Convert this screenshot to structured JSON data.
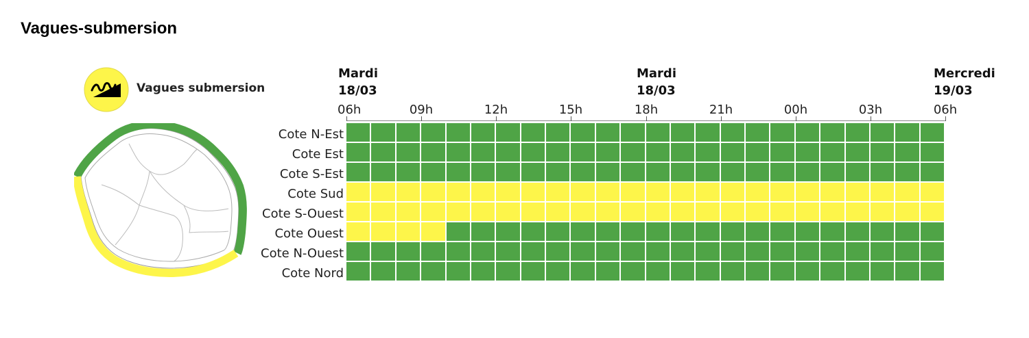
{
  "page": {
    "title": "Vagues-submersion"
  },
  "legend": {
    "label": "Vagues submersion",
    "icon": "wave-submersion-icon"
  },
  "colors": {
    "green": "#4fa446",
    "yellow": "#fdf54a",
    "icon_bg": "#fdf54a"
  },
  "chart_data": {
    "type": "heatmap",
    "title": "",
    "day_labels": [
      {
        "day": "Mardi",
        "date": "18/03"
      },
      {
        "day": "Mardi",
        "date": "18/03"
      },
      {
        "day": "Mercredi",
        "date": "19/03"
      }
    ],
    "x_ticks": [
      "06h",
      "09h",
      "12h",
      "15h",
      "18h",
      "21h",
      "00h",
      "03h",
      "06h"
    ],
    "hours_per_cell": 1,
    "rows": [
      {
        "zone": "Cote N-Est",
        "levels": [
          "green",
          "green",
          "green",
          "green",
          "green",
          "green",
          "green",
          "green",
          "green",
          "green",
          "green",
          "green",
          "green",
          "green",
          "green",
          "green",
          "green",
          "green",
          "green",
          "green",
          "green",
          "green",
          "green",
          "green"
        ]
      },
      {
        "zone": "Cote Est",
        "levels": [
          "green",
          "green",
          "green",
          "green",
          "green",
          "green",
          "green",
          "green",
          "green",
          "green",
          "green",
          "green",
          "green",
          "green",
          "green",
          "green",
          "green",
          "green",
          "green",
          "green",
          "green",
          "green",
          "green",
          "green"
        ]
      },
      {
        "zone": "Cote S-Est",
        "levels": [
          "green",
          "green",
          "green",
          "green",
          "green",
          "green",
          "green",
          "green",
          "green",
          "green",
          "green",
          "green",
          "green",
          "green",
          "green",
          "green",
          "green",
          "green",
          "green",
          "green",
          "green",
          "green",
          "green",
          "green"
        ]
      },
      {
        "zone": "Cote Sud",
        "levels": [
          "yellow",
          "yellow",
          "yellow",
          "yellow",
          "yellow",
          "yellow",
          "yellow",
          "yellow",
          "yellow",
          "yellow",
          "yellow",
          "yellow",
          "yellow",
          "yellow",
          "yellow",
          "yellow",
          "yellow",
          "yellow",
          "yellow",
          "yellow",
          "yellow",
          "yellow",
          "yellow",
          "yellow"
        ]
      },
      {
        "zone": "Cote S-Ouest",
        "levels": [
          "yellow",
          "yellow",
          "yellow",
          "yellow",
          "yellow",
          "yellow",
          "yellow",
          "yellow",
          "yellow",
          "yellow",
          "yellow",
          "yellow",
          "yellow",
          "yellow",
          "yellow",
          "yellow",
          "yellow",
          "yellow",
          "yellow",
          "yellow",
          "yellow",
          "yellow",
          "yellow",
          "yellow"
        ]
      },
      {
        "zone": "Cote Ouest",
        "levels": [
          "yellow",
          "yellow",
          "yellow",
          "yellow",
          "green",
          "green",
          "green",
          "green",
          "green",
          "green",
          "green",
          "green",
          "green",
          "green",
          "green",
          "green",
          "green",
          "green",
          "green",
          "green",
          "green",
          "green",
          "green",
          "green"
        ]
      },
      {
        "zone": "Cote N-Ouest",
        "levels": [
          "green",
          "green",
          "green",
          "green",
          "green",
          "green",
          "green",
          "green",
          "green",
          "green",
          "green",
          "green",
          "green",
          "green",
          "green",
          "green",
          "green",
          "green",
          "green",
          "green",
          "green",
          "green",
          "green",
          "green"
        ]
      },
      {
        "zone": "Cote Nord",
        "levels": [
          "green",
          "green",
          "green",
          "green",
          "green",
          "green",
          "green",
          "green",
          "green",
          "green",
          "green",
          "green",
          "green",
          "green",
          "green",
          "green",
          "green",
          "green",
          "green",
          "green",
          "green",
          "green",
          "green",
          "green"
        ]
      }
    ]
  }
}
